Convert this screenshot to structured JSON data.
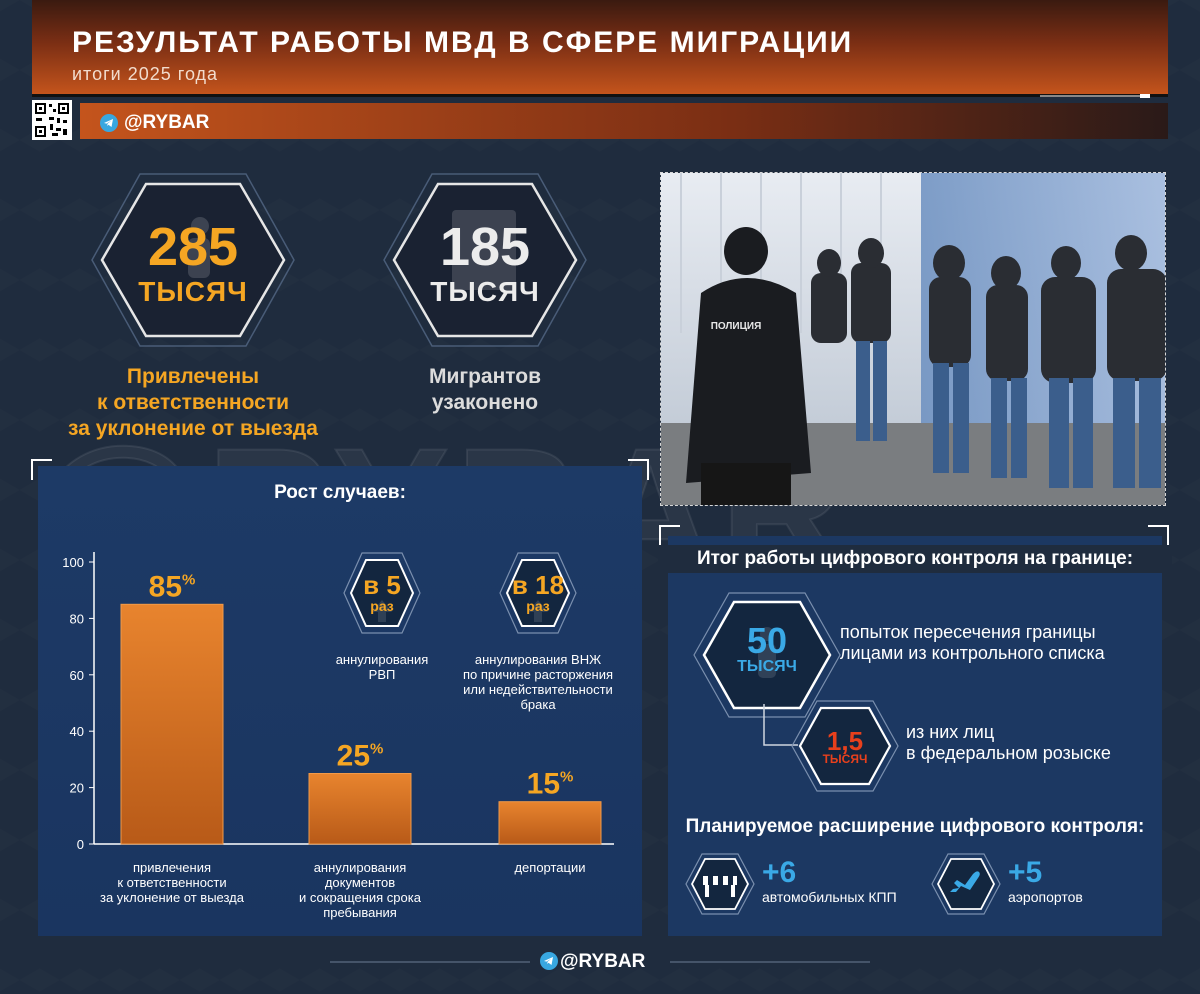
{
  "header": {
    "title": "РЕЗУЛЬТАТ РАБОТЫ МВД В СФЕРЕ МИГРАЦИИ",
    "subtitle": "итоги 2025 года",
    "brand": "@RYBAR"
  },
  "watermark": "@RYBAR",
  "stats": [
    {
      "value": "285",
      "unit": "ТЫСЯЧ",
      "label_lines": [
        "Привлечены",
        "к ответственности",
        "за уклонение от выезда"
      ]
    },
    {
      "value": "185",
      "unit": "ТЫСЯЧ",
      "label_lines": [
        "Мигрантов",
        "узаконено"
      ]
    }
  ],
  "growth": {
    "title": "Рост случаев:",
    "items": [
      {
        "value": "в 5",
        "unit": "раз",
        "label_lines": [
          "аннулирования",
          "РВП"
        ]
      },
      {
        "value": "в 18",
        "unit": "раз",
        "label_lines": [
          "аннулирования ВНЖ",
          "по причине расторжения",
          "или недействительности",
          "брака"
        ]
      }
    ]
  },
  "chart_data": {
    "type": "bar",
    "categories": [
      "привлечения\nк ответственности\nза уклонение от выезда",
      "аннулирования\nдокументов\nи сокращения срока\nпребывания",
      "депортации"
    ],
    "category_lines": [
      [
        "привлечения",
        "к ответственности",
        "за уклонение от выезда"
      ],
      [
        "аннулирования",
        "документов",
        "и сокращения срока",
        "пребывания"
      ],
      [
        "депортации"
      ]
    ],
    "values": [
      85,
      25,
      15
    ],
    "data_labels": [
      "85",
      "25",
      "15"
    ],
    "value_suffix": "%",
    "ylim": [
      0,
      100
    ],
    "yticks": [
      "0",
      "20",
      "40",
      "60",
      "80",
      "100"
    ],
    "bar_color": "#e07a2a"
  },
  "control": {
    "title": "Итог работы цифрового контроля на границе:",
    "items": [
      {
        "value": "50",
        "unit": "ТЫСЯЧ",
        "label_lines": [
          "попыток пересечения границы",
          "лицами из контрольного списка"
        ]
      },
      {
        "value": "1,5",
        "unit": "ТЫСЯЧ",
        "label_lines": [
          "из них лиц",
          "в федеральном розыске"
        ]
      }
    ],
    "expansion_title": "Планируемое расширение цифрового контроля:",
    "expansion": [
      {
        "value": "+6",
        "label": "автомобильных КПП",
        "icon": "barrier-icon"
      },
      {
        "value": "+5",
        "label": "аэропортов",
        "icon": "airplane-icon"
      }
    ]
  },
  "photo": {
    "sign": "ПОЛИЦИЯ"
  },
  "footer": {
    "brand": "@RYBAR"
  },
  "colors": {
    "accent": "#f5a623",
    "blue": "#3aa9e6",
    "red": "#e8401c",
    "header": "#c4541c"
  }
}
